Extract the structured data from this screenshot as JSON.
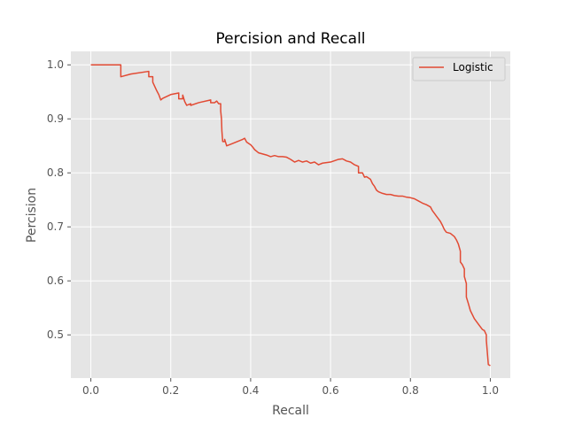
{
  "chart_data": {
    "type": "line",
    "title": "Percision and Recall",
    "xlabel": "Recall",
    "ylabel": "Percision",
    "xlim": [
      -0.05,
      1.05
    ],
    "ylim": [
      0.42,
      1.025
    ],
    "xticks": [
      0.0,
      0.2,
      0.4,
      0.6,
      0.8,
      1.0
    ],
    "xtick_labels": [
      "0.0",
      "0.2",
      "0.4",
      "0.6",
      "0.8",
      "1.0"
    ],
    "yticks": [
      0.5,
      0.6,
      0.7,
      0.8,
      0.9,
      1.0
    ],
    "ytick_labels": [
      "0.5",
      "0.6",
      "0.7",
      "0.8",
      "0.9",
      "1.0"
    ],
    "grid": true,
    "legend_position": "top-right",
    "background": "#e5e5e5",
    "series": [
      {
        "name": "Logistic",
        "color": "#e24a33",
        "x": [
          0.0,
          0.075,
          0.075,
          0.1,
          0.145,
          0.145,
          0.155,
          0.155,
          0.16,
          0.165,
          0.17,
          0.175,
          0.18,
          0.2,
          0.22,
          0.22,
          0.23,
          0.23,
          0.235,
          0.24,
          0.25,
          0.25,
          0.27,
          0.3,
          0.3,
          0.31,
          0.315,
          0.32,
          0.325,
          0.325,
          0.327,
          0.328,
          0.33,
          0.335,
          0.335,
          0.34,
          0.35,
          0.38,
          0.385,
          0.39,
          0.4,
          0.405,
          0.41,
          0.415,
          0.42,
          0.43,
          0.44,
          0.45,
          0.46,
          0.47,
          0.48,
          0.49,
          0.5,
          0.51,
          0.52,
          0.53,
          0.54,
          0.55,
          0.56,
          0.57,
          0.58,
          0.6,
          0.62,
          0.63,
          0.64,
          0.65,
          0.66,
          0.67,
          0.67,
          0.68,
          0.685,
          0.69,
          0.7,
          0.705,
          0.71,
          0.715,
          0.72,
          0.73,
          0.74,
          0.75,
          0.76,
          0.77,
          0.78,
          0.79,
          0.8,
          0.81,
          0.82,
          0.83,
          0.84,
          0.85,
          0.855,
          0.86,
          0.865,
          0.87,
          0.875,
          0.88,
          0.885,
          0.89,
          0.9,
          0.91,
          0.915,
          0.92,
          0.925,
          0.925,
          0.93,
          0.935,
          0.935,
          0.94,
          0.94,
          0.945,
          0.95,
          0.96,
          0.97,
          0.98,
          0.985,
          0.99,
          0.99,
          0.995,
          1.0
        ],
        "y": [
          1.0,
          1.0,
          0.978,
          0.983,
          0.988,
          0.978,
          0.978,
          0.968,
          0.96,
          0.952,
          0.945,
          0.935,
          0.938,
          0.945,
          0.948,
          0.937,
          0.937,
          0.944,
          0.932,
          0.925,
          0.928,
          0.925,
          0.93,
          0.935,
          0.93,
          0.93,
          0.933,
          0.928,
          0.928,
          0.915,
          0.9,
          0.878,
          0.858,
          0.858,
          0.862,
          0.85,
          0.853,
          0.862,
          0.864,
          0.857,
          0.852,
          0.848,
          0.843,
          0.84,
          0.837,
          0.835,
          0.833,
          0.83,
          0.832,
          0.83,
          0.83,
          0.829,
          0.825,
          0.82,
          0.823,
          0.82,
          0.822,
          0.818,
          0.82,
          0.815,
          0.818,
          0.82,
          0.825,
          0.826,
          0.822,
          0.82,
          0.815,
          0.812,
          0.8,
          0.8,
          0.792,
          0.793,
          0.788,
          0.78,
          0.775,
          0.768,
          0.765,
          0.762,
          0.76,
          0.76,
          0.758,
          0.757,
          0.757,
          0.755,
          0.754,
          0.752,
          0.748,
          0.744,
          0.741,
          0.737,
          0.73,
          0.725,
          0.72,
          0.715,
          0.71,
          0.703,
          0.695,
          0.69,
          0.688,
          0.682,
          0.676,
          0.668,
          0.655,
          0.635,
          0.63,
          0.622,
          0.608,
          0.595,
          0.57,
          0.558,
          0.545,
          0.53,
          0.52,
          0.51,
          0.508,
          0.5,
          0.49,
          0.445,
          0.443
        ]
      }
    ]
  }
}
